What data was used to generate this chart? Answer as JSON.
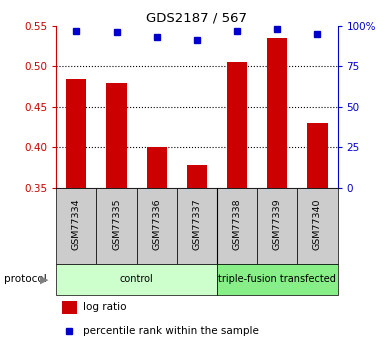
{
  "title": "GDS2187 / 567",
  "samples": [
    "GSM77334",
    "GSM77335",
    "GSM77336",
    "GSM77337",
    "GSM77338",
    "GSM77339",
    "GSM77340"
  ],
  "log_ratio": [
    0.484,
    0.479,
    0.4,
    0.378,
    0.505,
    0.535,
    0.43
  ],
  "percentile_rank": [
    97,
    96,
    93,
    91,
    97,
    98,
    95
  ],
  "ylim_left": [
    0.35,
    0.55
  ],
  "ylim_right": [
    0,
    100
  ],
  "yticks_left": [
    0.35,
    0.4,
    0.45,
    0.5,
    0.55
  ],
  "yticks_right": [
    0,
    25,
    50,
    75,
    100
  ],
  "ytick_labels_right": [
    "0",
    "25",
    "50",
    "75",
    "100%"
  ],
  "grid_lines": [
    0.4,
    0.45,
    0.5
  ],
  "bar_color": "#cc0000",
  "square_color": "#0000cc",
  "bar_bottom": 0.35,
  "protocol_groups": [
    {
      "label": "control",
      "start": 0,
      "end": 4,
      "color": "#ccffcc"
    },
    {
      "label": "triple-fusion transfected",
      "start": 4,
      "end": 7,
      "color": "#88ee88"
    }
  ],
  "protocol_label": "protocol",
  "legend_bar_label": "log ratio",
  "legend_sq_label": "percentile rank within the sample",
  "left_axis_color": "#cc0000",
  "right_axis_color": "#0000cc",
  "tick_label_color_left": "#cc0000",
  "tick_label_color_right": "#0000cc",
  "sample_box_color": "#cccccc",
  "bg_color": "#ffffff"
}
